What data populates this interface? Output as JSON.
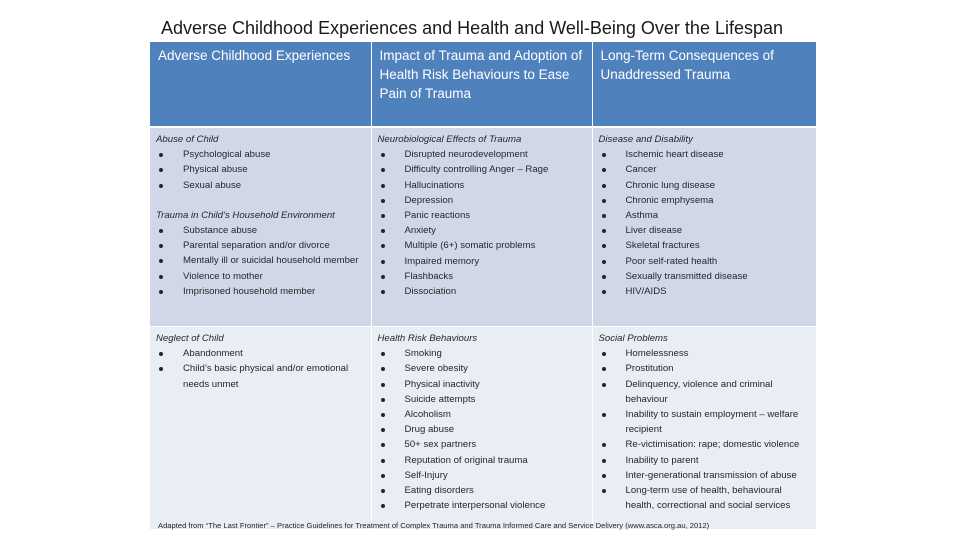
{
  "title": "Adverse Childhood Experiences and Health and Well-Being Over the Lifespan",
  "headers": [
    "Adverse Childhood Experiences",
    "Impact of Trauma and Adoption of Health Risk Behaviours to Ease Pain of Trauma",
    "Long-Term Consequences of Unaddressed Trauma"
  ],
  "rows": [
    {
      "cells": [
        {
          "sections": [
            {
              "title": "Abuse of Child",
              "items": [
                "Psychological abuse",
                "Physical abuse",
                "Sexual abuse"
              ]
            },
            {
              "title": "Trauma in Child’s Household Environment",
              "items": [
                "Substance abuse",
                "Parental separation and/or divorce",
                "Mentally ill or suicidal household member",
                "Violence to mother",
                "Imprisoned household member"
              ]
            }
          ]
        },
        {
          "sections": [
            {
              "title": "Neurobiological Effects of Trauma",
              "items": [
                "Disrupted neurodevelopment",
                "Difficulty controlling Anger – Rage",
                "Hallucinations",
                "Depression",
                "Panic reactions",
                "Anxiety",
                "Multiple (6+) somatic problems",
                "Impaired memory",
                "Flashbacks",
                "Dissociation"
              ]
            }
          ]
        },
        {
          "sections": [
            {
              "title": "Disease and Disability",
              "items": [
                "Ischemic heart disease",
                "Cancer",
                "Chronic lung disease",
                "Chronic emphysema",
                "Asthma",
                "Liver disease",
                "Skeletal fractures",
                "Poor self-rated health",
                "Sexually transmitted disease",
                "HIV/AIDS"
              ]
            }
          ]
        }
      ]
    },
    {
      "cells": [
        {
          "sections": [
            {
              "title": "Neglect of Child",
              "items": [
                "Abandonment",
                "Child’s basic physical and/or emotional needs unmet"
              ]
            }
          ]
        },
        {
          "sections": [
            {
              "title": "Health Risk Behaviours",
              "items": [
                "Smoking",
                "Severe obesity",
                "Physical inactivity",
                "Suicide attempts",
                "Alcoholism",
                "Drug abuse",
                "50+ sex partners",
                "Reputation of original trauma",
                "Self-Injury",
                "Eating disorders",
                "Perpetrate interpersonal violence"
              ]
            }
          ]
        },
        {
          "sections": [
            {
              "title": "Social Problems",
              "items": [
                "Homelessness",
                "Prostitution",
                "Delinquency, violence and criminal behaviour",
                "Inability to sustain employment – welfare recipient",
                "Re-victimisation: rape; domestic violence",
                "Inability to parent",
                "Inter-generational transmission of abuse",
                "Long-term use of health, behavioural health, correctional and social services"
              ]
            }
          ]
        }
      ]
    }
  ],
  "footnote": "Adapted from “The Last Frontier” – Practice Guidelines for Treatment of Complex Trauma and Trauma Informed Care and Service Delivery (www.asca.org.au, 2012)"
}
